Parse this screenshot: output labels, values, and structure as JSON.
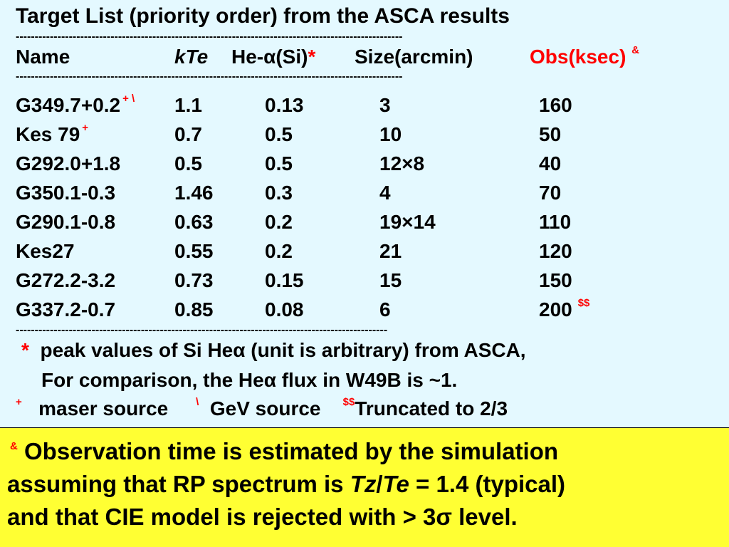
{
  "title": "Target  List  (priority order)  from  the ASCA results",
  "separator": "------------------------------------------------------------------------------------------------------",
  "separator_short": "--------------------------------------------------------------------------------------------------",
  "headers": {
    "name": "Name",
    "kte": "kTe",
    "he_prefix": "He-α(Si)",
    "he_mark": "*",
    "size": "Size(arcmin)",
    "obs": "Obs(ksec)",
    "obs_mark": "&"
  },
  "rows": [
    {
      "name": "G349.7+0.2",
      "marks": "+ \\",
      "kte": "1.1",
      "he": "0.13",
      "size": "3",
      "obs": "160",
      "obs_mark": ""
    },
    {
      "name": "Kes 79",
      "marks": "+",
      "kte": "0.7",
      "he": "0.5",
      "size": "10",
      "obs": "50",
      "obs_mark": ""
    },
    {
      "name": "G292.0+1.8",
      "marks": "",
      "kte": "0.5",
      "he": "0.5",
      "size": "12×8",
      "obs": "40",
      "obs_mark": ""
    },
    {
      "name": "G350.1-0.3",
      "marks": "",
      "kte": "1.46",
      "he": "0.3",
      "size": "4",
      "obs": "70",
      "obs_mark": ""
    },
    {
      "name": "G290.1-0.8",
      "marks": "",
      "kte": "0.63",
      "he": "0.2",
      "size": "19×14",
      "obs": "110",
      "obs_mark": ""
    },
    {
      "name": "Kes27",
      "marks": "",
      "kte": "0.55",
      "he": "0.2",
      "size": "21",
      "obs": "120",
      "obs_mark": ""
    },
    {
      "name": "G272.2-3.2",
      "marks": "",
      "kte": "0.73",
      "he": "0.15",
      "size": "15",
      "obs": "150",
      "obs_mark": ""
    },
    {
      "name": "G337.2-0.7",
      "marks": "",
      "kte": "0.85",
      "he": "0.08",
      "size": "6",
      "obs": "200",
      "obs_mark": "$$"
    }
  ],
  "footnotes": {
    "star_mark": "*",
    "star_text": "peak values of Si Heα  (unit is arbitrary)  from ASCA,",
    "star_text2": "For  comparison,   the Heα flux in  W49B  is ~1.",
    "plus_mark": "+",
    "plus_text": "maser source",
    "back_mark": "\\",
    "back_text": "GeV source",
    "dollar_mark": "$$",
    "dollar_text": "Truncated to 2/3"
  },
  "note": {
    "mark": "&",
    "line1": "Observation time is estimated by  the simulation",
    "line2_a": "assuming that RP spectrum is ",
    "line2_tz": "Tz",
    "line2_slash": "/",
    "line2_te": "Te",
    "line2_b": " = 1.4 (typical)",
    "line3": "and that  CIE model  is rejected with  > 3σ level."
  }
}
